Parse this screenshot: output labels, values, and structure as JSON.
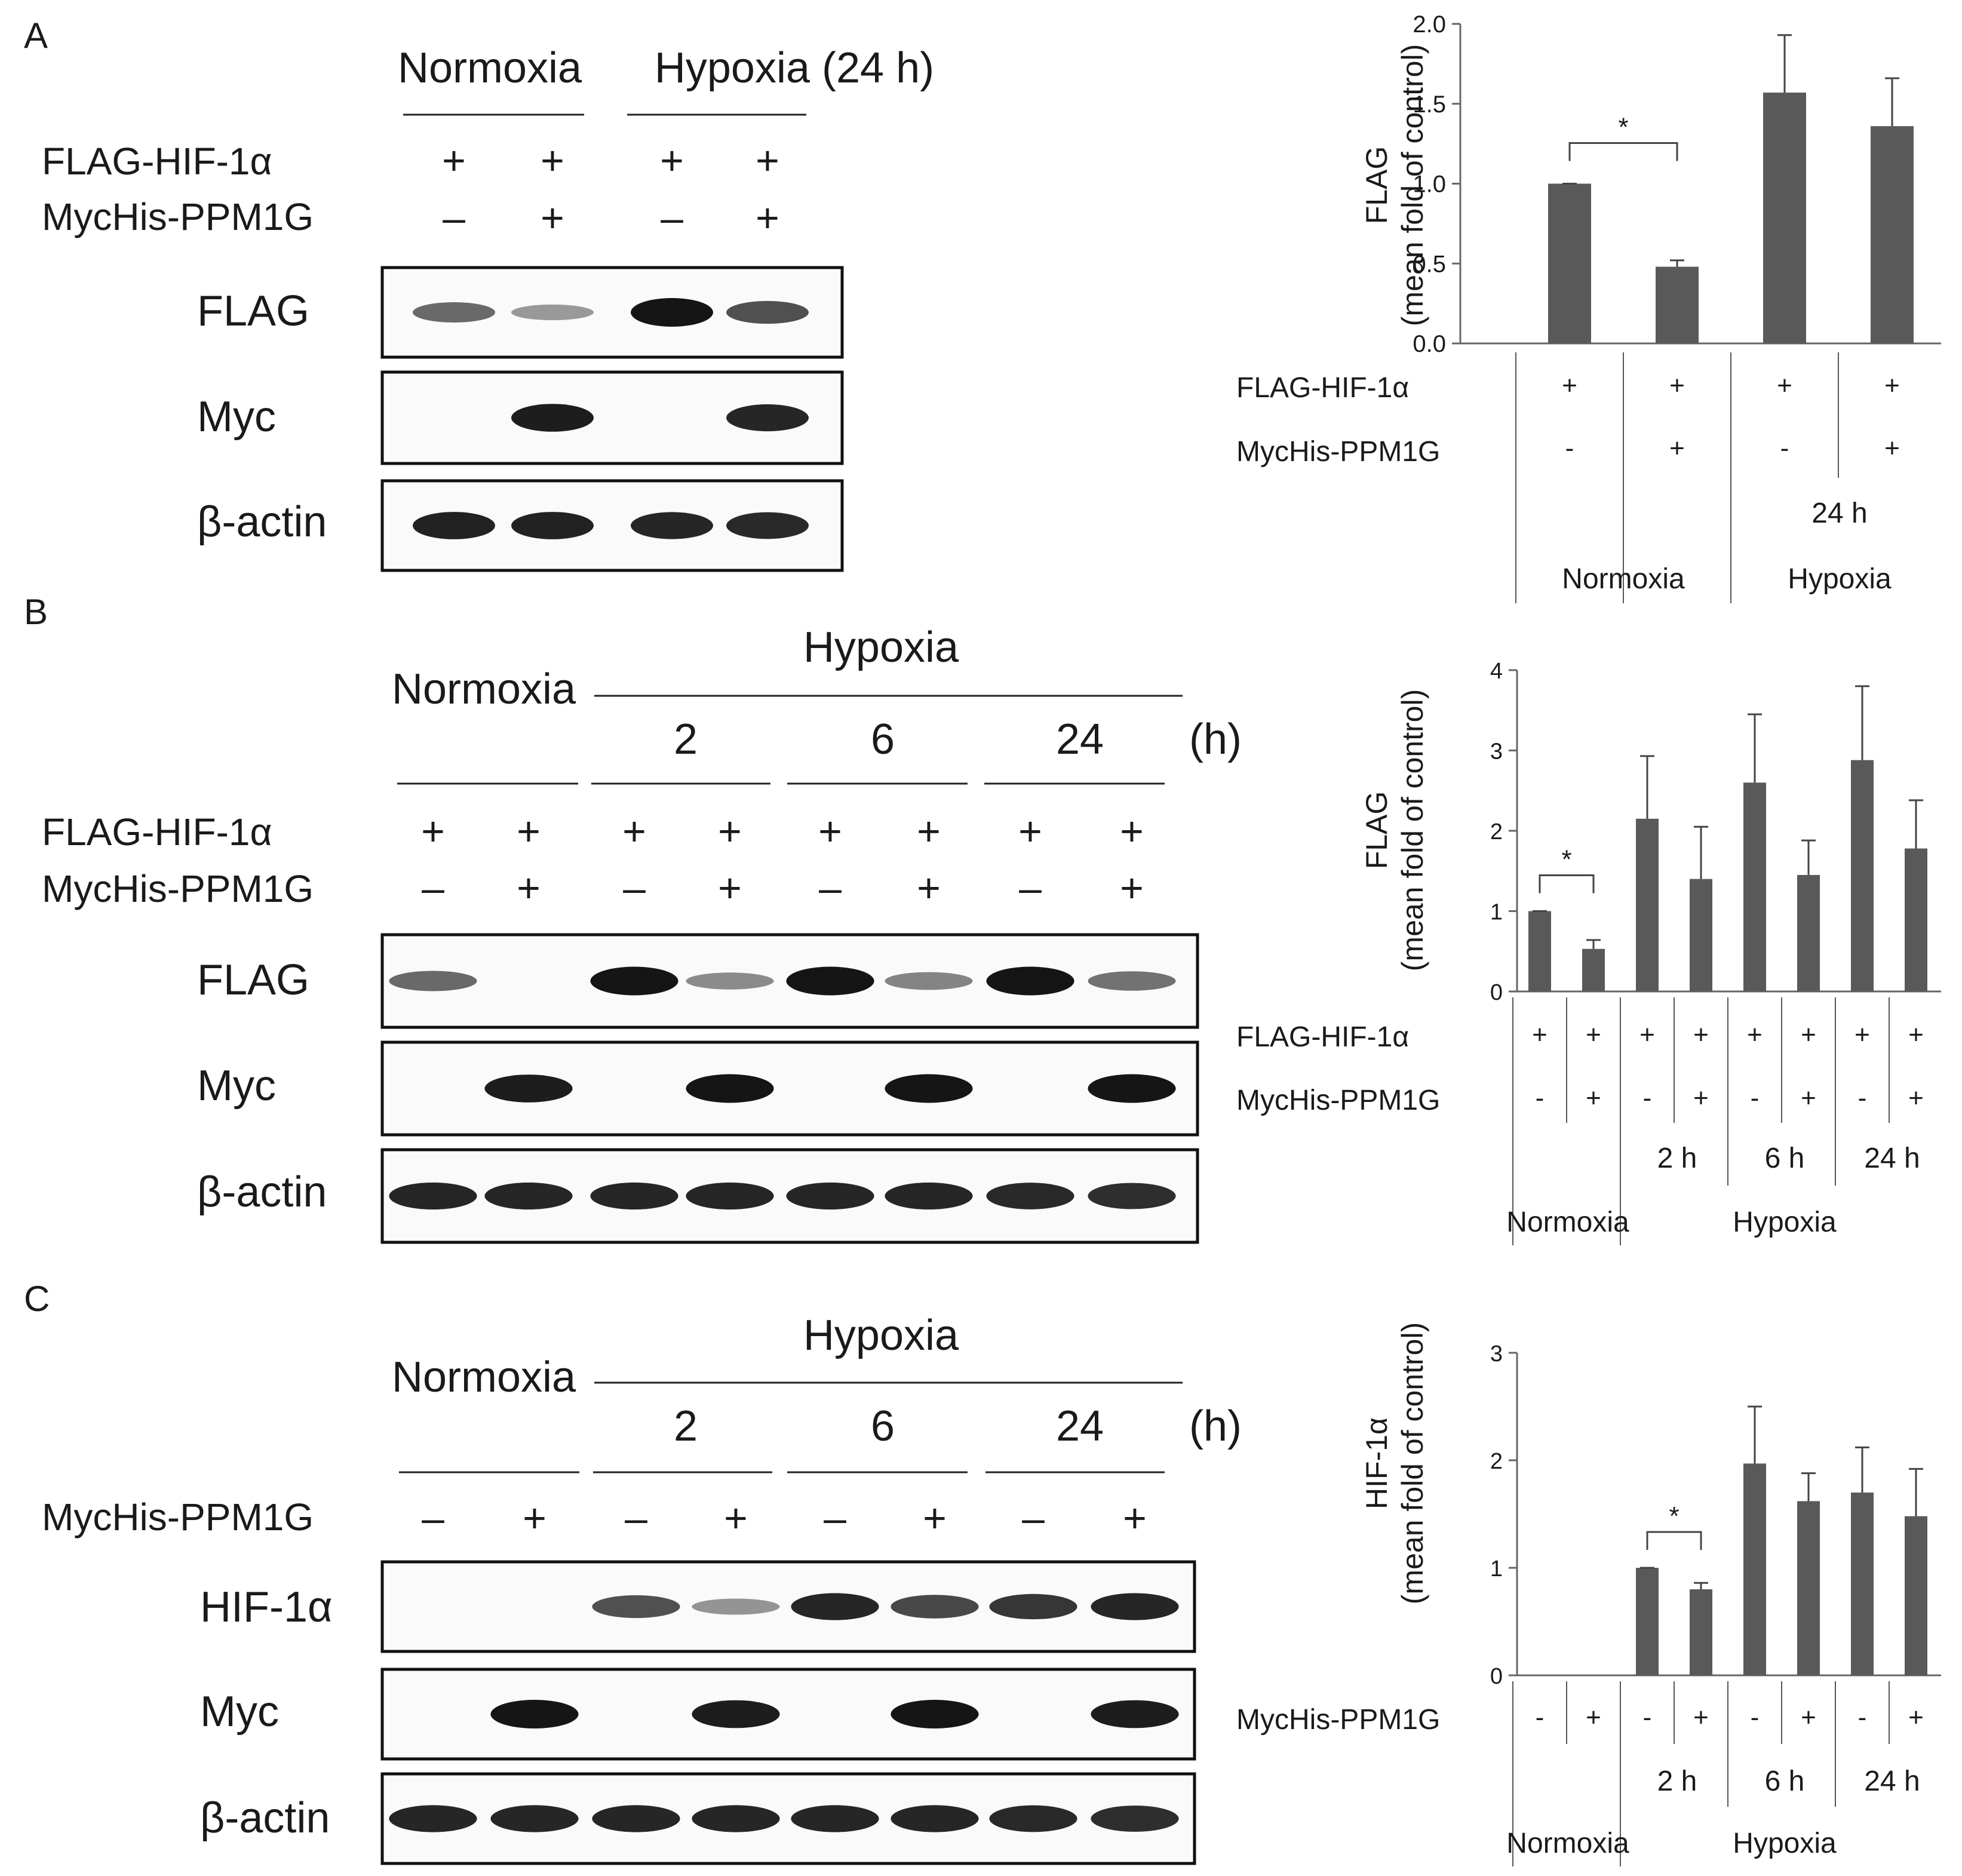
{
  "panels": [
    {
      "letter": "A",
      "blot": {
        "conditions": [
          {
            "label": "Normoxia"
          },
          {
            "label": "Hypoxia (24 h)"
          }
        ],
        "treatments": [
          {
            "label": "FLAG-HIF-1α",
            "signs": [
              "+",
              "+",
              "+",
              "+"
            ]
          },
          {
            "label": "MycHis-PPM1G",
            "signs": [
              "–",
              "+",
              "–",
              "+"
            ]
          }
        ],
        "blots": [
          {
            "label": "FLAG",
            "bands": [
              0.5,
              0.22,
              1.0,
              0.65
            ]
          },
          {
            "label": "Myc",
            "bands": [
              0,
              0.95,
              0,
              0.9
            ]
          },
          {
            "label": "β-actin",
            "bands": [
              0.92,
              0.92,
              0.9,
              0.88
            ]
          }
        ]
      }
    },
    {
      "letter": "B",
      "blot": {
        "normoxia_label": "Normoxia",
        "hypoxia_label": "Hypoxia",
        "time_points": [
          "2",
          "6",
          "24"
        ],
        "time_unit": "(h)",
        "treatments": [
          {
            "label": "FLAG-HIF-1α",
            "signs": [
              "+",
              "+",
              "+",
              "+",
              "+",
              "+",
              "+",
              "+"
            ]
          },
          {
            "label": "MycHis-PPM1G",
            "signs": [
              "–",
              "+",
              "–",
              "+",
              "–",
              "+",
              "–",
              "+"
            ]
          }
        ],
        "blots": [
          {
            "label": "FLAG",
            "bands": [
              0.5,
              0,
              1.0,
              0.3,
              1.0,
              0.35,
              1.0,
              0.45
            ]
          },
          {
            "label": "Myc",
            "bands": [
              0,
              0.95,
              0,
              1.0,
              0,
              1.0,
              0,
              1.0
            ]
          },
          {
            "label": "β-actin",
            "bands": [
              0.9,
              0.9,
              0.9,
              0.9,
              0.9,
              0.9,
              0.88,
              0.85
            ]
          }
        ]
      }
    },
    {
      "letter": "C",
      "blot": {
        "normoxia_label": "Normoxia",
        "hypoxia_label": "Hypoxia",
        "time_points": [
          "2",
          "6",
          "24"
        ],
        "time_unit": "(h)",
        "treatments": [
          {
            "label": "MycHis-PPM1G",
            "signs": [
              "–",
              "+",
              "–",
              "+",
              "–",
              "+",
              "–",
              "+"
            ]
          }
        ],
        "blots": [
          {
            "label": "HIF-1α",
            "bands": [
              0,
              0,
              0.65,
              0.25,
              0.9,
              0.7,
              0.8,
              0.9
            ]
          },
          {
            "label": "Myc",
            "bands": [
              0,
              1.0,
              0,
              0.95,
              0,
              1.0,
              0,
              0.95
            ]
          },
          {
            "label": "β-actin",
            "bands": [
              0.9,
              0.9,
              0.9,
              0.9,
              0.9,
              0.9,
              0.88,
              0.85
            ]
          }
        ]
      }
    }
  ],
  "chart_data": [
    {
      "type": "bar",
      "panel": "A",
      "ylabel": "FLAG",
      "ylabel2": "(mean fold of control)",
      "ylim": [
        0,
        2.0
      ],
      "yticks": [
        "0.0",
        "0.5",
        "1.0",
        "1.5",
        "2.0"
      ],
      "values": [
        1.0,
        0.48,
        1.57,
        1.36
      ],
      "errors": [
        0.0,
        0.04,
        0.36,
        0.3
      ],
      "rows": [
        {
          "label": "FLAG-HIF-1α",
          "signs": [
            "+",
            "+",
            "+",
            "+"
          ]
        },
        {
          "label": "MycHis-PPM1G",
          "signs": [
            "-",
            "+",
            "-",
            "+"
          ]
        }
      ],
      "time_labels": [
        "24 h"
      ],
      "conditions": [
        "Normoxia",
        "Hypoxia"
      ],
      "significance": [
        {
          "bars": [
            0,
            1
          ],
          "label": "*"
        }
      ]
    },
    {
      "type": "bar",
      "panel": "B",
      "ylabel": "FLAG",
      "ylabel2": "(mean fold of control)",
      "ylim": [
        0,
        4
      ],
      "yticks": [
        "0",
        "1",
        "2",
        "3",
        "4"
      ],
      "values": [
        1.0,
        0.53,
        2.15,
        1.4,
        2.6,
        1.45,
        2.88,
        1.78
      ],
      "errors": [
        0.0,
        0.11,
        0.78,
        0.65,
        0.85,
        0.43,
        0.92,
        0.6
      ],
      "rows": [
        {
          "label": "FLAG-HIF-1α",
          "signs": [
            "+",
            "+",
            "+",
            "+",
            "+",
            "+",
            "+",
            "+"
          ]
        },
        {
          "label": "MycHis-PPM1G",
          "signs": [
            "-",
            "+",
            "-",
            "+",
            "-",
            "+",
            "-",
            "+"
          ]
        }
      ],
      "time_labels": [
        "2 h",
        "6 h",
        "24 h"
      ],
      "conditions": [
        "Normoxia",
        "Hypoxia"
      ],
      "significance": [
        {
          "bars": [
            0,
            1
          ],
          "label": "*"
        }
      ]
    },
    {
      "type": "bar",
      "panel": "C",
      "ylabel": "HIF-1α",
      "ylabel2": "(mean fold of control)",
      "ylim": [
        0,
        3
      ],
      "yticks": [
        "0",
        "1",
        "2",
        "3"
      ],
      "values": [
        0,
        0,
        1.0,
        0.8,
        1.97,
        1.62,
        1.7,
        1.48
      ],
      "errors": [
        0,
        0,
        0.0,
        0.06,
        0.53,
        0.26,
        0.42,
        0.44
      ],
      "rows": [
        {
          "label": "MycHis-PPM1G",
          "signs": [
            "-",
            "+",
            "-",
            "+",
            "-",
            "+",
            "-",
            "+"
          ]
        }
      ],
      "time_labels": [
        "2 h",
        "6 h",
        "24 h"
      ],
      "conditions": [
        "Normoxia",
        "Hypoxia"
      ],
      "significance": [
        {
          "bars": [
            2,
            3
          ],
          "label": "*"
        }
      ]
    }
  ]
}
